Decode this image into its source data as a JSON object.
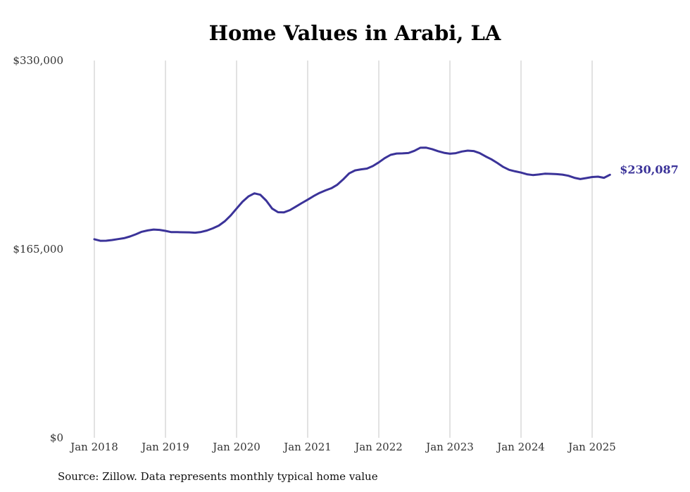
{
  "chart_data": {
    "type": "line",
    "title": "Home Values in Arabi, LA",
    "source": "Source: Zillow. Data represents monthly typical home value",
    "ylim": [
      0,
      330000
    ],
    "yticks": [
      {
        "value": 0,
        "label": "$0"
      },
      {
        "value": 165000,
        "label": "$165,000"
      },
      {
        "value": 330000,
        "label": "$330,000"
      }
    ],
    "xticks": [
      {
        "x": "2018-01",
        "label": "Jan 2018"
      },
      {
        "x": "2019-01",
        "label": "Jan 2019"
      },
      {
        "x": "2020-01",
        "label": "Jan 2020"
      },
      {
        "x": "2021-01",
        "label": "Jan 2021"
      },
      {
        "x": "2022-01",
        "label": "Jan 2022"
      },
      {
        "x": "2023-01",
        "label": "Jan 2023"
      },
      {
        "x": "2024-01",
        "label": "Jan 2024"
      },
      {
        "x": "2025-01",
        "label": "Jan 2025"
      }
    ],
    "grid": "vertical",
    "line_color": "#3b3399",
    "end_label": "$230,087",
    "series": [
      {
        "x": [
          "2018-01",
          "2018-02",
          "2018-03",
          "2018-04",
          "2018-05",
          "2018-06",
          "2018-07",
          "2018-08",
          "2018-09",
          "2018-10",
          "2018-11",
          "2018-12",
          "2019-01",
          "2019-02",
          "2019-03",
          "2019-04",
          "2019-05",
          "2019-06",
          "2019-07",
          "2019-08",
          "2019-09",
          "2019-10",
          "2019-11",
          "2019-12",
          "2020-01",
          "2020-02",
          "2020-03",
          "2020-04",
          "2020-05",
          "2020-06",
          "2020-07",
          "2020-08",
          "2020-09",
          "2020-10",
          "2020-11",
          "2020-12",
          "2021-01",
          "2021-02",
          "2021-03",
          "2021-04",
          "2021-05",
          "2021-06",
          "2021-07",
          "2021-08",
          "2021-09",
          "2021-10",
          "2021-11",
          "2021-12",
          "2022-01",
          "2022-02",
          "2022-03",
          "2022-04",
          "2022-05",
          "2022-06",
          "2022-07",
          "2022-08",
          "2022-09",
          "2022-10",
          "2022-11",
          "2022-12",
          "2023-01",
          "2023-02",
          "2023-03",
          "2023-04",
          "2023-05",
          "2023-06",
          "2023-07",
          "2023-08",
          "2023-09",
          "2023-10",
          "2023-11",
          "2023-12",
          "2024-01",
          "2024-02",
          "2024-03",
          "2024-04",
          "2024-05",
          "2024-06",
          "2024-07",
          "2024-08",
          "2024-09",
          "2024-10",
          "2024-11",
          "2024-12",
          "2025-01",
          "2025-02",
          "2025-03",
          "2025-04"
        ],
        "y": [
          173700,
          172300,
          172400,
          173000,
          173800,
          174600,
          176100,
          178000,
          180200,
          181400,
          182200,
          181900,
          181000,
          179900,
          179900,
          179800,
          179700,
          179400,
          180000,
          181300,
          183200,
          185600,
          189400,
          194400,
          200500,
          206500,
          211100,
          213800,
          212600,
          207500,
          200500,
          197300,
          197200,
          199200,
          202200,
          205300,
          208300,
          211400,
          214200,
          216400,
          218300,
          221400,
          226100,
          231300,
          233900,
          234800,
          235500,
          237700,
          240900,
          244600,
          247500,
          248700,
          248800,
          249100,
          251000,
          253700,
          253800,
          252500,
          250700,
          249300,
          248500,
          249000,
          250400,
          251200,
          250800,
          249100,
          246200,
          243600,
          240400,
          236900,
          234400,
          233100,
          232000,
          230500,
          229800,
          230300,
          231000,
          230900,
          230600,
          230200,
          229200,
          227400,
          226300,
          227200,
          228100,
          228400,
          227400,
          230087
        ]
      }
    ]
  }
}
